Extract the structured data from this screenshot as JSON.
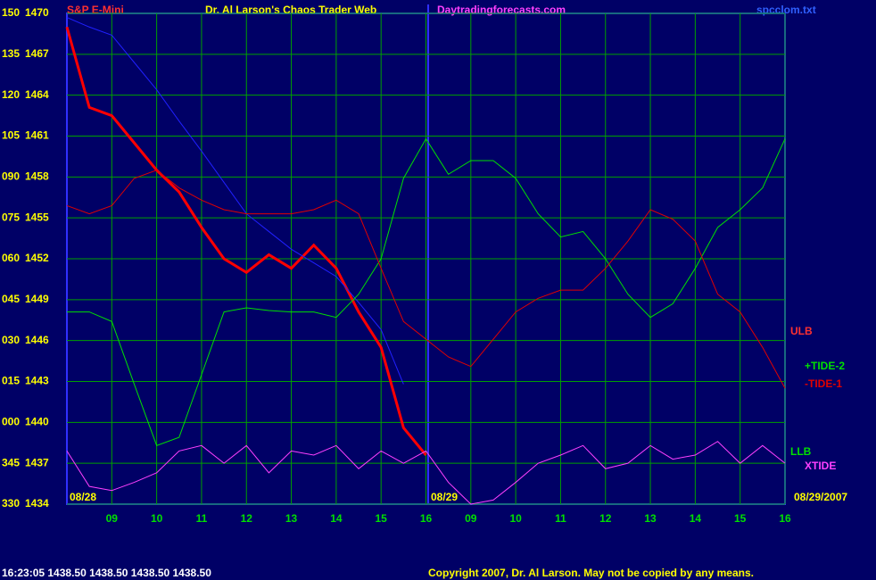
{
  "chart_data": {
    "type": "line",
    "title": "Dr. Al Larson's Chaos Trader Web",
    "instrument": "S&P E-Mini",
    "site": "Daytradingforecasts.com",
    "file": "spcclom.txt",
    "start_date": "08/28",
    "day2_label": "08/29",
    "end_date": "08/29/2007",
    "band_labels": [
      "ULB",
      "LLB"
    ],
    "status": "16:23:05  1438.50  1438.50  1438.50  1438.50",
    "copyright": "Copyright 2007, Dr. Al Larson. May not be copied by any means.",
    "grid": true,
    "x": [
      0,
      0.5,
      1,
      1.5,
      2,
      2.5,
      3,
      3.5,
      4,
      4.5,
      5,
      5.5,
      6,
      6.5,
      7,
      7.5,
      8,
      8.5,
      9,
      9.5,
      10,
      10.5,
      11,
      11.5,
      12,
      12.5,
      13,
      13.5,
      14,
      14.5,
      15,
      15.5,
      16
    ],
    "xlim": [
      0,
      16
    ],
    "xticks": [
      {
        "value": 1,
        "label": "09"
      },
      {
        "value": 2,
        "label": "10"
      },
      {
        "value": 3,
        "label": "11"
      },
      {
        "value": 4,
        "label": "12"
      },
      {
        "value": 5,
        "label": "13"
      },
      {
        "value": 6,
        "label": "14"
      },
      {
        "value": 7,
        "label": "15"
      },
      {
        "value": 8,
        "label": "16"
      },
      {
        "value": 9,
        "label": "09"
      },
      {
        "value": 10,
        "label": "10"
      },
      {
        "value": 11,
        "label": "11"
      },
      {
        "value": 12,
        "label": "12"
      },
      {
        "value": 13,
        "label": "13"
      },
      {
        "value": 14,
        "label": "14"
      },
      {
        "value": 15,
        "label": "15"
      },
      {
        "value": 16,
        "label": "16"
      }
    ],
    "ylim": [
      1434,
      1470
    ],
    "yticks": [
      1470,
      1467,
      1464,
      1461,
      1458,
      1455,
      1452,
      1449,
      1446,
      1443,
      1440,
      1437,
      1434
    ],
    "angle_labels": [
      "150",
      "135",
      "120",
      "105",
      "090",
      "075",
      "060",
      "045",
      "030",
      "015",
      "000",
      "345",
      "330"
    ],
    "series": [
      {
        "color": "#ff0000",
        "width": 3,
        "values": [
          1469.0,
          1463.1,
          1462.5,
          1460.5,
          1458.5,
          1456.9,
          1454.3,
          1452.0,
          1451.0,
          1452.3,
          1451.3,
          1453.0,
          1451.3,
          1448.1,
          1445.5,
          1439.6,
          1437.6,
          null,
          null,
          null,
          null,
          null,
          null,
          null,
          null,
          null,
          null,
          null,
          null,
          null,
          null,
          null,
          null
        ]
      },
      {
        "color": "#2020ff",
        "width": 1,
        "values": [
          1469.7,
          1469.0,
          1468.4,
          1466.4,
          1464.4,
          1462.1,
          1459.9,
          1457.6,
          1455.3,
          1454.0,
          1452.7,
          1451.7,
          1450.7,
          1448.8,
          1446.8,
          1442.8,
          null,
          null,
          null,
          null,
          null,
          null,
          null,
          null,
          null,
          null,
          null,
          null,
          null,
          null,
          null,
          null,
          null
        ]
      },
      {
        "name": "+TIDE-2",
        "color": "#00e000",
        "width": 1,
        "values": [
          1448.1,
          1448.1,
          1447.4,
          1442.8,
          1438.3,
          1438.9,
          1443.5,
          1448.1,
          1448.4,
          1448.2,
          1448.1,
          1448.1,
          1447.7,
          1449.4,
          1452.0,
          1457.9,
          1460.8,
          1458.2,
          1459.2,
          1459.2,
          1457.9,
          1455.3,
          1453.6,
          1454.0,
          1452.0,
          1449.4,
          1447.7,
          1448.7,
          1451.3,
          1454.3,
          1455.6,
          1457.2,
          1460.8
        ]
      },
      {
        "name": "-TIDE-1",
        "color": "#e00000",
        "width": 1,
        "values": [
          1455.9,
          1455.3,
          1455.9,
          1457.9,
          1458.5,
          1457.2,
          1456.3,
          1455.6,
          1455.3,
          1455.3,
          1455.3,
          1455.6,
          1456.3,
          1455.3,
          1451.3,
          1447.4,
          1446.1,
          1444.8,
          1444.1,
          1446.1,
          1448.1,
          1449.1,
          1449.7,
          1449.7,
          1451.3,
          1453.3,
          1455.6,
          1454.9,
          1453.3,
          1449.4,
          1448.1,
          1445.5,
          1442.5
        ]
      },
      {
        "name": "XTIDE",
        "color": "#ff40ff",
        "width": 1,
        "values": [
          1437.9,
          1435.3,
          1435.0,
          1435.6,
          1436.3,
          1437.9,
          1438.3,
          1437.0,
          1438.3,
          1436.3,
          1437.9,
          1437.6,
          1438.3,
          1436.6,
          1437.9,
          1437.0,
          1437.9,
          1435.6,
          1434.0,
          1434.3,
          1435.6,
          1437.0,
          1437.6,
          1438.3,
          1436.6,
          1437.0,
          1438.3,
          1437.3,
          1437.6,
          1438.6,
          1437.0,
          1438.3,
          1437.0
        ]
      }
    ]
  }
}
